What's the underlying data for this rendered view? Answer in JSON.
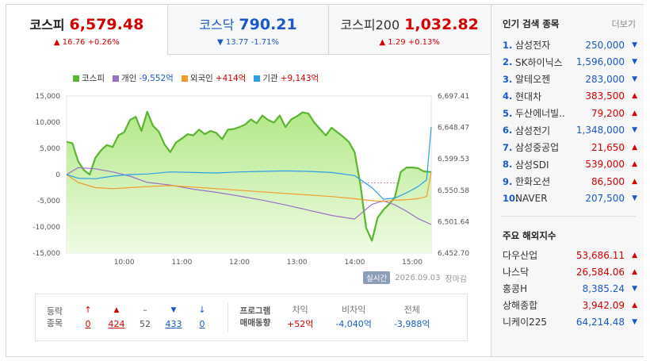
{
  "tabs": [
    {
      "name": "코스피",
      "value": "6,579.48",
      "change": "▲ 16.76 +0.26%",
      "dir": "up",
      "active": true
    },
    {
      "name": "코스닥",
      "value": "790.21",
      "change": "▼ 13.77 -1.71%",
      "dir": "down",
      "active": false
    },
    {
      "name": "코스피200",
      "value": "1,032.82",
      "change": "▲ 1.29 +0.13%",
      "dir": "up",
      "active": false
    }
  ],
  "legend": [
    {
      "name": "코스피",
      "value": "",
      "color": "#5cb531"
    },
    {
      "name": "개인",
      "value": "-9,552억",
      "color": "#9a6fc8",
      "dir": "down"
    },
    {
      "name": "외국인",
      "value": "+414억",
      "color": "#f39b28",
      "dir": "up"
    },
    {
      "name": "기관",
      "value": "+9,143억",
      "color": "#2b9fe6",
      "dir": "up"
    }
  ],
  "chart_data": {
    "type": "line",
    "x_ticks": [
      "10:00",
      "11:00",
      "12:00",
      "13:00",
      "14:00",
      "15:00"
    ],
    "y_left_ticks": [
      "15,000",
      "10,000",
      "5,000",
      "0",
      "-5,000",
      "-10,000",
      "-15,000"
    ],
    "y_right_ticks": [
      "6,697.41",
      "6,648.47",
      "6,599.53",
      "6,550.58",
      "6,501.64",
      "6,452.70"
    ],
    "ylim_left": [
      -15000,
      15000
    ],
    "ylim_right": [
      6452.7,
      6697.41
    ],
    "series": [
      {
        "name": "코스피",
        "axis": "right",
        "color": "#5cb531",
        "x": [
          9.0,
          9.1,
          9.2,
          9.3,
          9.4,
          9.5,
          9.6,
          9.7,
          9.8,
          9.9,
          10.0,
          10.1,
          10.2,
          10.3,
          10.4,
          10.5,
          10.6,
          10.7,
          10.8,
          10.9,
          11.0,
          11.1,
          11.2,
          11.3,
          11.4,
          11.5,
          11.6,
          11.7,
          11.8,
          11.9,
          12.0,
          12.1,
          12.2,
          12.3,
          12.4,
          12.5,
          12.6,
          12.7,
          12.8,
          12.9,
          13.0,
          13.1,
          13.2,
          13.3,
          13.4,
          13.5,
          13.6,
          13.7,
          13.8,
          13.9,
          14.0,
          14.1,
          14.2,
          14.3,
          14.4,
          14.5,
          14.6,
          14.7,
          14.8,
          14.9,
          15.0,
          15.1,
          15.2,
          15.33
        ],
        "y": [
          6626,
          6624,
          6596,
          6582,
          6575,
          6601,
          6613,
          6621,
          6618,
          6636,
          6641,
          6660,
          6665,
          6643,
          6673,
          6651,
          6642,
          6622,
          6610,
          6625,
          6631,
          6638,
          6636,
          6645,
          6638,
          6643,
          6640,
          6630,
          6645,
          6646,
          6649,
          6653,
          6661,
          6655,
          6667,
          6660,
          6656,
          6667,
          6649,
          6661,
          6666,
          6672,
          6670,
          6656,
          6646,
          6636,
          6648,
          6641,
          6634,
          6626,
          6610,
          6560,
          6492,
          6472,
          6508,
          6520,
          6529,
          6540,
          6579,
          6586,
          6586,
          6585,
          6580,
          6579
        ]
      },
      {
        "name": "개인",
        "axis": "left",
        "color": "#9a6fc8",
        "x": [
          9.0,
          9.2,
          9.5,
          9.8,
          10.1,
          10.4,
          10.8,
          11.2,
          11.6,
          12.0,
          12.4,
          12.8,
          13.2,
          13.6,
          14.0,
          14.3,
          14.5,
          14.7,
          14.9,
          15.1,
          15.33
        ],
        "y": [
          0,
          1300,
          1100,
          500,
          -300,
          -1500,
          -2000,
          -2800,
          -3400,
          -4100,
          -4900,
          -5800,
          -6800,
          -7800,
          -8500,
          -5700,
          -5000,
          -5800,
          -7000,
          -8400,
          -9552
        ]
      },
      {
        "name": "외국인",
        "axis": "left",
        "color": "#f39b28",
        "x": [
          9.0,
          9.2,
          9.5,
          9.8,
          10.1,
          10.4,
          10.8,
          11.2,
          11.6,
          12.0,
          12.4,
          12.8,
          13.2,
          13.6,
          14.0,
          14.3,
          14.5,
          14.7,
          14.9,
          15.1,
          15.25,
          15.33
        ],
        "y": [
          0,
          -1500,
          -2500,
          -2700,
          -2500,
          -2300,
          -2100,
          -2400,
          -2700,
          -3000,
          -3300,
          -3600,
          -3900,
          -4200,
          -4600,
          -5000,
          -5100,
          -4900,
          -4800,
          -4600,
          -4200,
          414
        ]
      },
      {
        "name": "기관",
        "axis": "left",
        "color": "#2b9fe6",
        "x": [
          9.0,
          9.2,
          9.5,
          9.8,
          10.1,
          10.4,
          10.8,
          11.2,
          11.6,
          12.0,
          12.4,
          12.8,
          13.2,
          13.6,
          14.0,
          14.3,
          14.5,
          14.7,
          14.9,
          15.1,
          15.25,
          15.33
        ],
        "y": [
          0,
          -700,
          -800,
          -300,
          0,
          100,
          500,
          400,
          300,
          500,
          600,
          700,
          600,
          400,
          -200,
          -2500,
          -4700,
          -4500,
          -3500,
          -2300,
          -1000,
          9143
        ]
      }
    ]
  },
  "date": {
    "badge": "실시간",
    "date": "2026.09.03",
    "status": "장마감"
  },
  "breadth": {
    "label_top": "등락",
    "label_bottom": "종목",
    "items": [
      {
        "icon": "↑",
        "count": "0",
        "dir": "up"
      },
      {
        "icon": "▲",
        "count": "424",
        "dir": "up"
      },
      {
        "icon": "–",
        "count": "52",
        "dir": "flat"
      },
      {
        "icon": "▼",
        "count": "433",
        "dir": "down"
      },
      {
        "icon": "↓",
        "count": "0",
        "dir": "down"
      }
    ]
  },
  "program": {
    "label_top": "프로그램",
    "label_bottom": "매매동향",
    "cols": [
      {
        "head": "차익",
        "value": "+52억",
        "dir": "up"
      },
      {
        "head": "비차익",
        "value": "-4,040억",
        "dir": "down"
      },
      {
        "head": "전체",
        "value": "-3,988억",
        "dir": "down"
      }
    ]
  },
  "popular": {
    "title": "인기 검색 종목",
    "more": "더보기",
    "items": [
      {
        "rank": "1.",
        "name": "삼성전자",
        "price": "250,000",
        "dir": "down"
      },
      {
        "rank": "2.",
        "name": "SK하이닉스",
        "price": "1,596,000",
        "dir": "down"
      },
      {
        "rank": "3.",
        "name": "알테오젠",
        "price": "283,000",
        "dir": "down"
      },
      {
        "rank": "4.",
        "name": "현대차",
        "price": "383,500",
        "dir": "up"
      },
      {
        "rank": "5.",
        "name": "두산에너빌..",
        "price": "79,200",
        "dir": "up"
      },
      {
        "rank": "6.",
        "name": "삼성전기",
        "price": "1,348,000",
        "dir": "down"
      },
      {
        "rank": "7.",
        "name": "삼성중공업",
        "price": "21,650",
        "dir": "up"
      },
      {
        "rank": "8.",
        "name": "삼성SDI",
        "price": "539,000",
        "dir": "up"
      },
      {
        "rank": "9.",
        "name": "한화오션",
        "price": "86,500",
        "dir": "up"
      },
      {
        "rank": "10.",
        "name": "NAVER",
        "price": "207,500",
        "dir": "down"
      }
    ]
  },
  "overseas": {
    "title": "주요 해외지수",
    "items": [
      {
        "name": "다우산업",
        "price": "53,686.11",
        "dir": "up"
      },
      {
        "name": "나스닥",
        "price": "26,584.06",
        "dir": "up"
      },
      {
        "name": "홍콩H",
        "price": "8,385.24",
        "dir": "down"
      },
      {
        "name": "상해종합",
        "price": "3,942.09",
        "dir": "up"
      },
      {
        "name": "니케이225",
        "price": "64,214.48",
        "dir": "down"
      }
    ]
  },
  "colors": {
    "up": "#d60000",
    "down": "#1a59c7",
    "kospi_fill": "#c9f0a6"
  }
}
